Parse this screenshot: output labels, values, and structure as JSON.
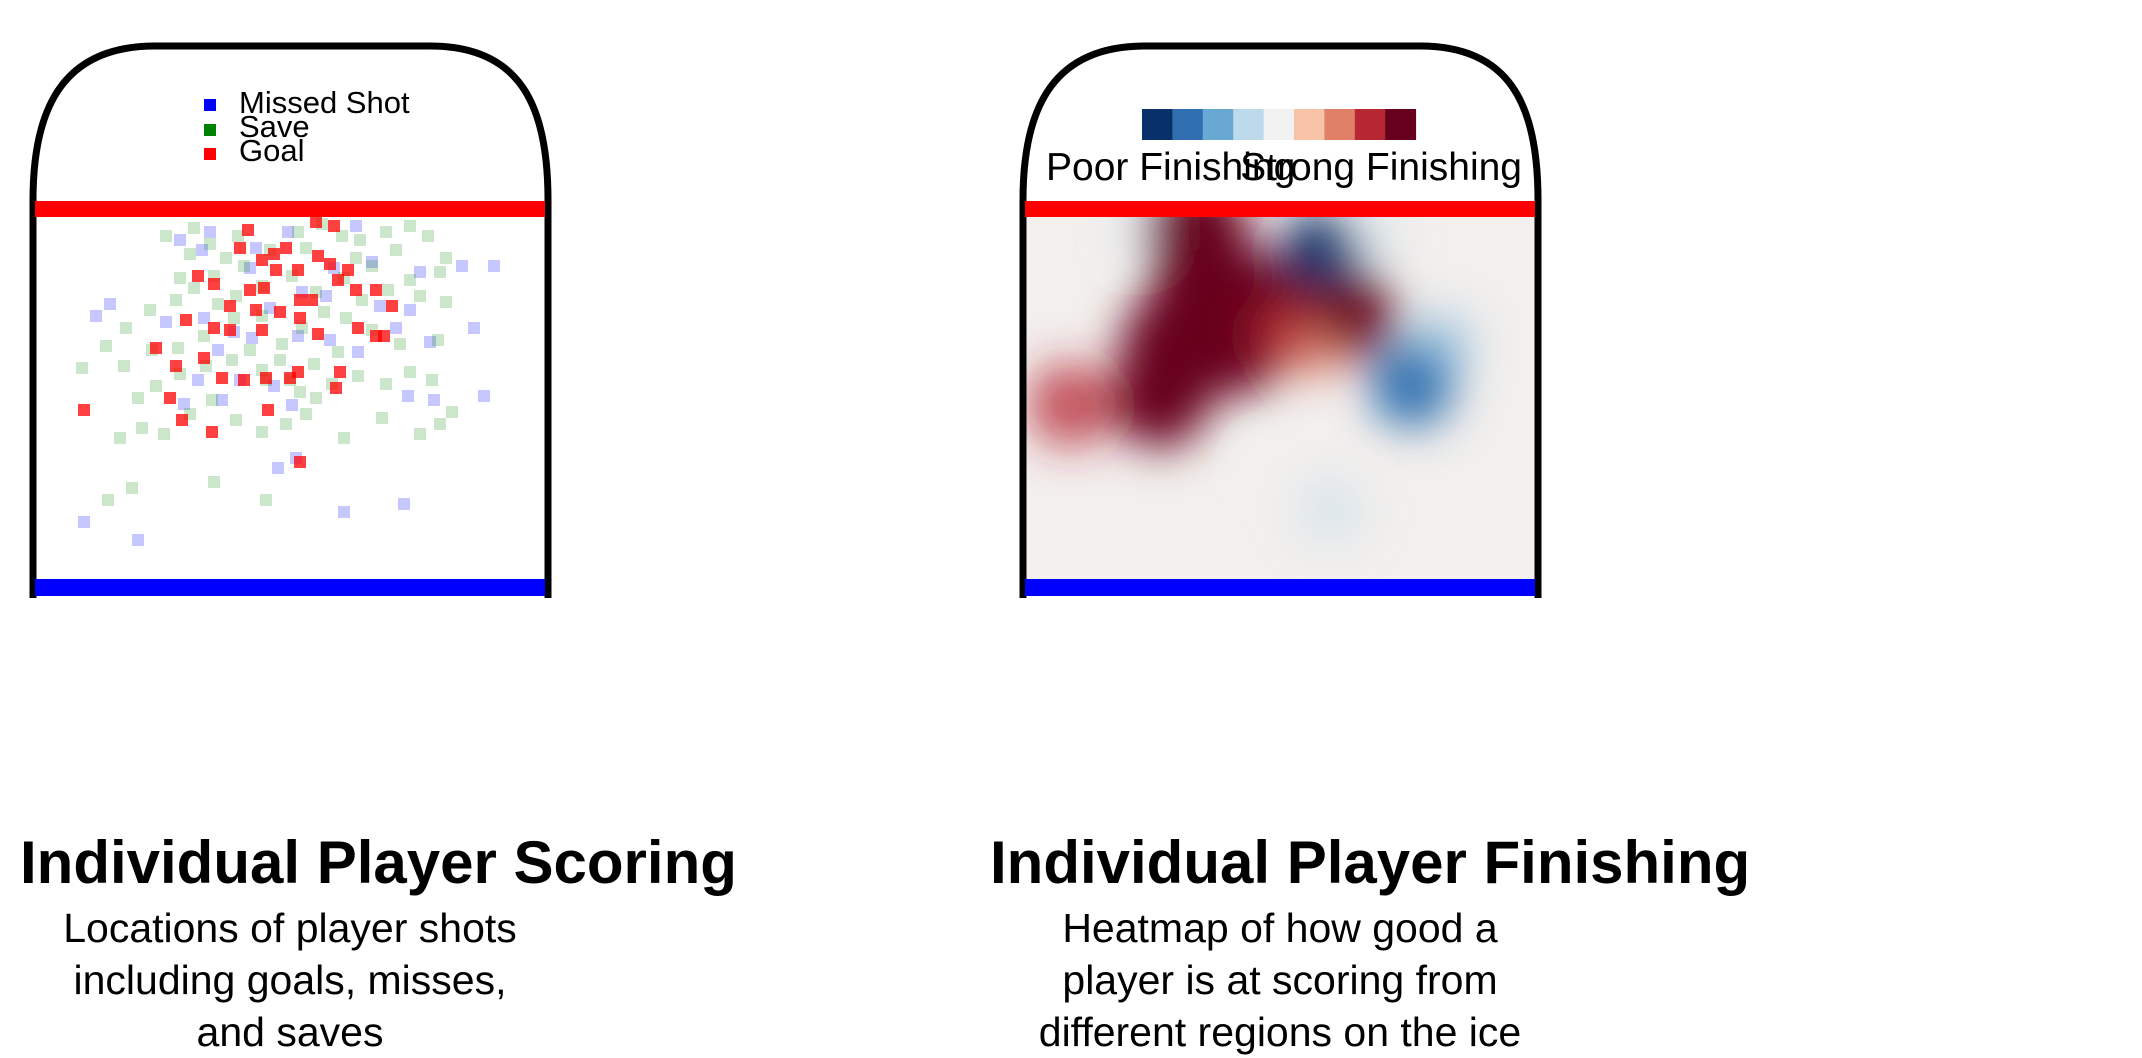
{
  "colors": {
    "red_line": "#ff0000",
    "blue_line": "#0000ff",
    "missed": "#0000ff",
    "save": "#008000",
    "goal": "#ff0000"
  },
  "left_panel": {
    "title": "Individual Player Scoring",
    "subtitle": "Locations of player shots including goals, misses, and saves",
    "legend": [
      {
        "label": "Missed Shot",
        "color": "#0000ff"
      },
      {
        "label": "Save",
        "color": "#008000"
      },
      {
        "label": "Goal",
        "color": "#ff0000"
      }
    ]
  },
  "right_panel": {
    "title": "Individual Player Finishing",
    "subtitle": "Heatmap of how good a player is at scoring from different regions on the ice",
    "colorbar": {
      "low_label": "Poor Finishing",
      "high_label": "Strong Finishing",
      "colors": [
        "#08306b",
        "#2f6faf",
        "#6aa8d4",
        "#bcdaea",
        "#f2f2f2",
        "#f7c2a6",
        "#e08066",
        "#b62734",
        "#67001f"
      ]
    }
  },
  "chart_data": [
    {
      "type": "scatter",
      "title": "Individual Player Scoring",
      "series": [
        {
          "name": "Missed Shot",
          "points": [
            [
              210,
              232
            ],
            [
              288,
              232
            ],
            [
              202,
              250
            ],
            [
              256,
              248
            ],
            [
              250,
              268
            ],
            [
              334,
              268
            ],
            [
              462,
              266
            ],
            [
              494,
              266
            ],
            [
              420,
              272
            ],
            [
              270,
              308
            ],
            [
              410,
              310
            ],
            [
              110,
              304
            ],
            [
              96,
              316
            ],
            [
              380,
              306
            ],
            [
              166,
              322
            ],
            [
              396,
              328
            ],
            [
              474,
              328
            ],
            [
              234,
              332
            ],
            [
              298,
              336
            ],
            [
              218,
              350
            ],
            [
              358,
              352
            ],
            [
              252,
              338
            ],
            [
              430,
              342
            ],
            [
              240,
              380
            ],
            [
              274,
              386
            ],
            [
              408,
              396
            ],
            [
              484,
              396
            ],
            [
              198,
              380
            ],
            [
              292,
              405
            ],
            [
              222,
              400
            ],
            [
              434,
              400
            ],
            [
              184,
              404
            ],
            [
              278,
              468
            ],
            [
              296,
              458
            ],
            [
              84,
              522
            ],
            [
              138,
              540
            ],
            [
              344,
              512
            ],
            [
              404,
              504
            ],
            [
              326,
              296
            ],
            [
              302,
              292
            ],
            [
              356,
              226
            ],
            [
              180,
              240
            ],
            [
              330,
              340
            ],
            [
              204,
              318
            ],
            [
              372,
              262
            ]
          ]
        },
        {
          "name": "Save",
          "points": [
            [
              166,
              236
            ],
            [
              194,
              228
            ],
            [
              210,
              244
            ],
            [
              238,
              236
            ],
            [
              226,
              258
            ],
            [
              270,
              250
            ],
            [
              298,
              232
            ],
            [
              322,
              224
            ],
            [
              342,
              236
            ],
            [
              360,
              240
            ],
            [
              386,
              232
            ],
            [
              410,
              226
            ],
            [
              428,
              236
            ],
            [
              446,
              258
            ],
            [
              396,
              250
            ],
            [
              372,
              266
            ],
            [
              344,
              278
            ],
            [
              316,
              292
            ],
            [
              292,
              276
            ],
            [
              262,
              286
            ],
            [
              236,
              296
            ],
            [
              214,
              276
            ],
            [
              194,
              288
            ],
            [
              176,
              300
            ],
            [
              150,
              310
            ],
            [
              126,
              328
            ],
            [
              106,
              346
            ],
            [
              82,
              368
            ],
            [
              124,
              366
            ],
            [
              152,
              350
            ],
            [
              178,
              348
            ],
            [
              204,
              336
            ],
            [
              234,
              318
            ],
            [
              262,
              316
            ],
            [
              282,
              344
            ],
            [
              302,
              328
            ],
            [
              324,
              312
            ],
            [
              346,
              318
            ],
            [
              372,
              330
            ],
            [
              400,
              344
            ],
            [
              438,
              340
            ],
            [
              446,
              302
            ],
            [
              420,
              296
            ],
            [
              388,
              290
            ],
            [
              362,
              300
            ],
            [
              338,
              352
            ],
            [
              314,
              364
            ],
            [
              290,
              380
            ],
            [
              262,
              370
            ],
            [
              232,
              360
            ],
            [
              206,
              366
            ],
            [
              180,
              374
            ],
            [
              156,
              386
            ],
            [
              138,
              398
            ],
            [
              120,
              438
            ],
            [
              142,
              428
            ],
            [
              164,
              434
            ],
            [
              190,
              414
            ],
            [
              212,
              400
            ],
            [
              236,
              420
            ],
            [
              262,
              432
            ],
            [
              286,
              424
            ],
            [
              306,
              414
            ],
            [
              332,
              384
            ],
            [
              358,
              376
            ],
            [
              386,
              384
            ],
            [
              410,
              372
            ],
            [
              432,
              380
            ],
            [
              452,
              412
            ],
            [
              440,
              424
            ],
            [
              420,
              434
            ],
            [
              382,
              418
            ],
            [
              344,
              438
            ],
            [
              316,
              398
            ],
            [
              266,
              380
            ],
            [
              244,
              266
            ],
            [
              190,
              254
            ],
            [
              218,
              304
            ],
            [
              250,
              350
            ],
            [
              280,
              360
            ],
            [
              108,
              500
            ],
            [
              132,
              488
            ],
            [
              214,
              482
            ],
            [
              266,
              500
            ],
            [
              300,
              392
            ],
            [
              180,
              278
            ],
            [
              410,
              280
            ],
            [
              440,
              272
            ],
            [
              356,
              258
            ],
            [
              306,
              248
            ]
          ]
        },
        {
          "name": "Goal",
          "points": [
            [
              248,
              230
            ],
            [
              286,
              248
            ],
            [
              262,
              260
            ],
            [
              240,
              248
            ],
            [
              198,
              276
            ],
            [
              214,
              284
            ],
            [
              230,
              306
            ],
            [
              250,
              290
            ],
            [
              264,
              288
            ],
            [
              276,
              270
            ],
            [
              298,
              270
            ],
            [
              318,
              256
            ],
            [
              330,
              264
            ],
            [
              338,
              280
            ],
            [
              356,
              290
            ],
            [
              376,
              290
            ],
            [
              392,
              306
            ],
            [
              312,
              300
            ],
            [
              300,
              300
            ],
            [
              280,
              312
            ],
            [
              262,
              330
            ],
            [
              230,
              330
            ],
            [
              214,
              328
            ],
            [
              204,
              358
            ],
            [
              186,
              320
            ],
            [
              176,
              366
            ],
            [
              156,
              348
            ],
            [
              170,
              398
            ],
            [
              182,
              420
            ],
            [
              212,
              432
            ],
            [
              222,
              378
            ],
            [
              244,
              380
            ],
            [
              266,
              378
            ],
            [
              290,
              378
            ],
            [
              298,
              372
            ],
            [
              340,
              372
            ],
            [
              336,
              388
            ],
            [
              268,
              410
            ],
            [
              300,
              462
            ],
            [
              318,
              334
            ],
            [
              358,
              328
            ],
            [
              376,
              336
            ],
            [
              384,
              336
            ],
            [
              274,
              254
            ],
            [
              316,
              222
            ],
            [
              334,
              226
            ],
            [
              84,
              410
            ],
            [
              348,
              270
            ],
            [
              300,
              318
            ],
            [
              256,
              310
            ]
          ]
        }
      ]
    },
    {
      "type": "heatmap",
      "title": "Individual Player Finishing",
      "colorbar_labels": [
        "Poor Finishing",
        "Strong Finishing"
      ],
      "blobs": [
        {
          "x": 1198,
          "y": 228,
          "value": 1.0,
          "spread": 50
        },
        {
          "x": 1210,
          "y": 290,
          "value": 1.0,
          "spread": 60
        },
        {
          "x": 1180,
          "y": 350,
          "value": 1.0,
          "spread": 60
        },
        {
          "x": 1160,
          "y": 400,
          "value": 0.9,
          "spread": 48
        },
        {
          "x": 1235,
          "y": 340,
          "value": 1.0,
          "spread": 55
        },
        {
          "x": 1265,
          "y": 300,
          "value": 0.95,
          "spread": 45
        },
        {
          "x": 1290,
          "y": 335,
          "value": 0.7,
          "spread": 36
        },
        {
          "x": 1350,
          "y": 315,
          "value": 1.0,
          "spread": 45
        },
        {
          "x": 1318,
          "y": 350,
          "value": 0.6,
          "spread": 28
        },
        {
          "x": 1070,
          "y": 405,
          "value": 0.65,
          "spread": 42
        },
        {
          "x": 1320,
          "y": 250,
          "value": -1.0,
          "spread": 38
        },
        {
          "x": 1412,
          "y": 385,
          "value": -0.85,
          "spread": 42
        },
        {
          "x": 1440,
          "y": 345,
          "value": -0.4,
          "spread": 32
        },
        {
          "x": 1330,
          "y": 510,
          "value": -0.3,
          "spread": 34
        },
        {
          "x": 1370,
          "y": 240,
          "value": -0.25,
          "spread": 28
        },
        {
          "x": 1140,
          "y": 230,
          "value": -0.15,
          "spread": 24
        },
        {
          "x": 1275,
          "y": 470,
          "value": 0.1,
          "spread": 20
        }
      ]
    }
  ]
}
